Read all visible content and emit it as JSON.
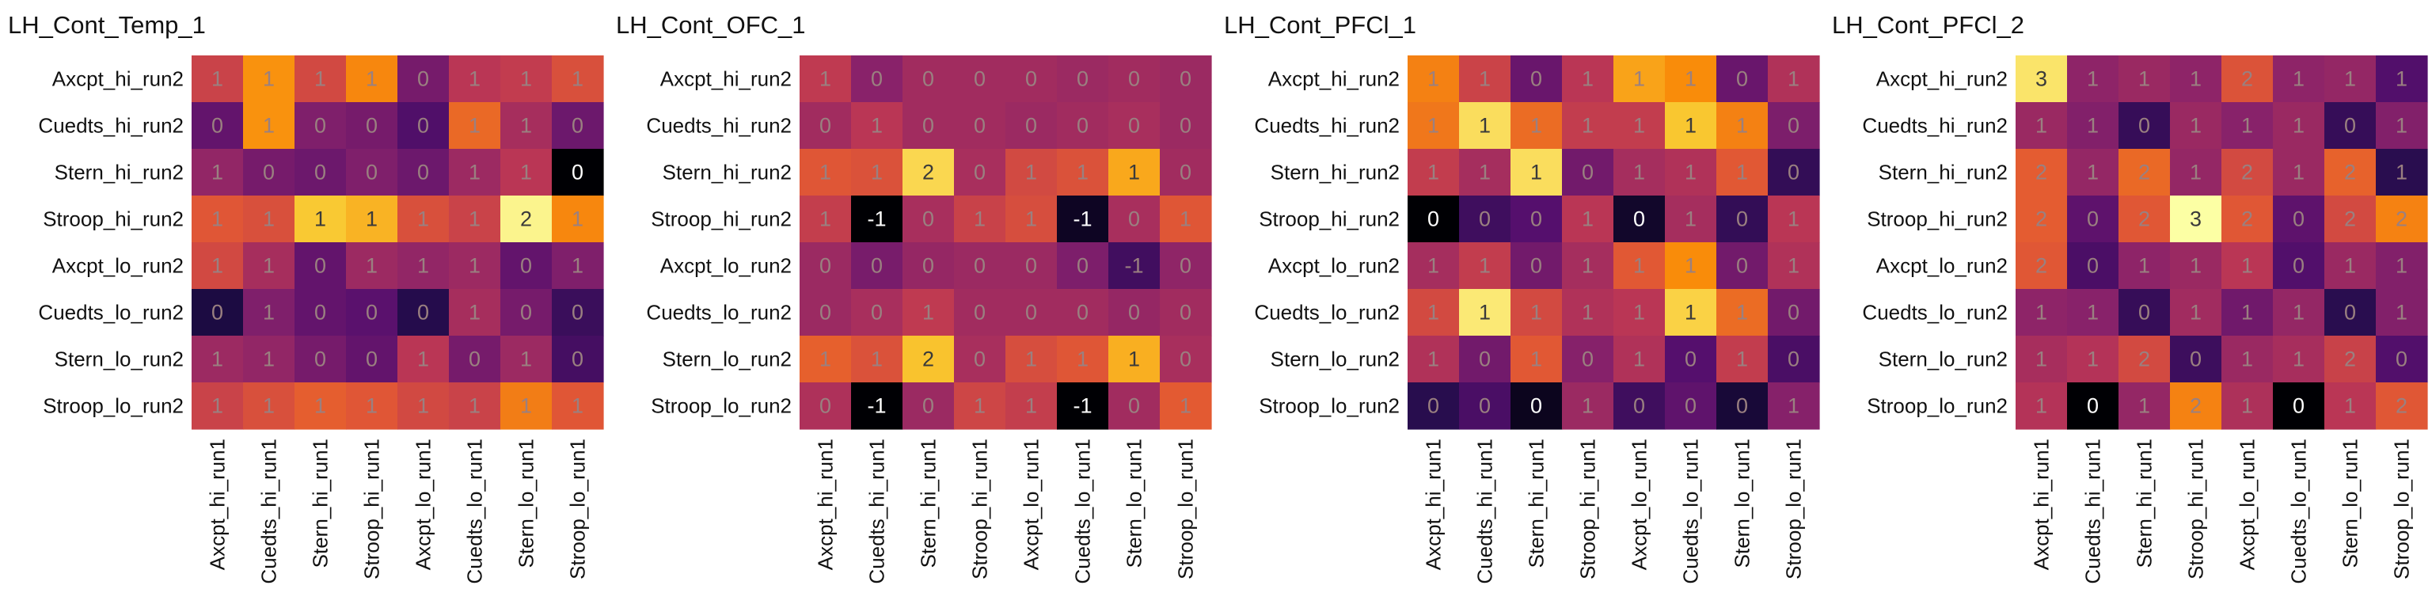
{
  "chart_data": [
    {
      "type": "heatmap",
      "title": "LH_Cont_Temp_1",
      "rows": [
        "Axcpt_hi_run2",
        "Cuedts_hi_run2",
        "Stern_hi_run2",
        "Stroop_hi_run2",
        "Axcpt_lo_run2",
        "Cuedts_lo_run2",
        "Stern_lo_run2",
        "Stroop_lo_run2"
      ],
      "columns": [
        "Axcpt_hi_run1",
        "Cuedts_hi_run1",
        "Stern_hi_run1",
        "Stroop_hi_run1",
        "Axcpt_lo_run1",
        "Cuedts_lo_run1",
        "Stern_lo_run1",
        "Stroop_lo_run1"
      ],
      "values": [
        [
          0.85,
          1.3,
          0.9,
          1.25,
          0.4,
          0.75,
          0.8,
          0.95
        ],
        [
          0.3,
          1.3,
          0.45,
          0.4,
          0.2,
          1.1,
          0.65,
          0.35
        ],
        [
          0.55,
          0.4,
          0.35,
          0.45,
          0.35,
          0.6,
          0.75,
          -0.3
        ],
        [
          1.0,
          0.95,
          1.55,
          1.45,
          0.95,
          0.85,
          1.75,
          1.25
        ],
        [
          0.9,
          0.65,
          0.3,
          0.6,
          0.55,
          0.6,
          0.3,
          0.45
        ],
        [
          -0.05,
          0.45,
          0.3,
          0.25,
          0.0,
          0.65,
          0.4,
          0.1
        ],
        [
          0.6,
          0.55,
          0.4,
          0.3,
          0.75,
          0.4,
          0.6,
          0.15
        ],
        [
          0.85,
          0.95,
          1.05,
          1.0,
          0.9,
          0.85,
          1.2,
          1.0
        ]
      ],
      "labels": [
        [
          "1",
          "1",
          "1",
          "1",
          "0",
          "1",
          "1",
          "1"
        ],
        [
          "0",
          "1",
          "0",
          "0",
          "0",
          "1",
          "1",
          "0"
        ],
        [
          "1",
          "0",
          "0",
          "0",
          "0",
          "1",
          "1",
          "0"
        ],
        [
          "1",
          "1",
          "1",
          "1",
          "1",
          "1",
          "2",
          "1"
        ],
        [
          "1",
          "1",
          "0",
          "1",
          "1",
          "1",
          "0",
          "1"
        ],
        [
          "0",
          "1",
          "0",
          "0",
          "0",
          "1",
          "0",
          "0"
        ],
        [
          "1",
          "1",
          "0",
          "0",
          "1",
          "0",
          "1",
          "0"
        ],
        [
          "1",
          "1",
          "1",
          "1",
          "1",
          "1",
          "1",
          "1"
        ]
      ],
      "vmin": -0.3,
      "vmax": 1.8
    },
    {
      "type": "heatmap",
      "title": "LH_Cont_OFC_1",
      "rows": [
        "Axcpt_hi_run2",
        "Cuedts_hi_run2",
        "Stern_hi_run2",
        "Stroop_hi_run2",
        "Axcpt_lo_run2",
        "Cuedts_lo_run2",
        "Stern_lo_run2",
        "Stroop_lo_run2"
      ],
      "columns": [
        "Axcpt_hi_run1",
        "Cuedts_hi_run1",
        "Stern_hi_run1",
        "Stroop_hi_run1",
        "Axcpt_lo_run1",
        "Cuedts_lo_run1",
        "Stern_lo_run1",
        "Stroop_lo_run1"
      ],
      "values": [
        [
          0.55,
          0.1,
          0.3,
          0.3,
          0.3,
          0.25,
          0.3,
          0.25
        ],
        [
          0.3,
          0.5,
          0.3,
          0.3,
          0.25,
          0.3,
          0.35,
          0.25
        ],
        [
          0.9,
          0.85,
          1.9,
          0.35,
          0.75,
          0.85,
          1.55,
          0.3
        ],
        [
          0.6,
          -1.2,
          0.35,
          0.65,
          0.8,
          -1.0,
          0.35,
          0.9
        ],
        [
          0.25,
          -0.05,
          0.2,
          0.25,
          0.25,
          0.0,
          -0.5,
          0.15
        ],
        [
          0.25,
          0.35,
          0.55,
          0.3,
          0.3,
          0.3,
          0.2,
          0.3
        ],
        [
          1.0,
          0.85,
          1.75,
          0.35,
          0.8,
          0.9,
          1.6,
          0.35
        ],
        [
          0.4,
          -1.2,
          0.25,
          0.7,
          0.6,
          -1.2,
          0.3,
          0.95
        ]
      ],
      "labels": [
        [
          "1",
          "0",
          "0",
          "0",
          "0",
          "0",
          "0",
          "0"
        ],
        [
          "0",
          "1",
          "0",
          "0",
          "0",
          "0",
          "0",
          "0"
        ],
        [
          "1",
          "1",
          "2",
          "0",
          "1",
          "1",
          "1",
          "0"
        ],
        [
          "1",
          "-1",
          "0",
          "1",
          "1",
          "-1",
          "0",
          "1"
        ],
        [
          "0",
          "0",
          "0",
          "0",
          "0",
          "0",
          "-1",
          "0"
        ],
        [
          "0",
          "0",
          "1",
          "0",
          "0",
          "0",
          "0",
          "0"
        ],
        [
          "1",
          "1",
          "2",
          "0",
          "1",
          "1",
          "1",
          "0"
        ],
        [
          "0",
          "-1",
          "0",
          "1",
          "1",
          "-1",
          "0",
          "1"
        ]
      ],
      "vmin": -1.2,
      "vmax": 2.2
    },
    {
      "type": "heatmap",
      "title": "LH_Cont_PFCl_1",
      "rows": [
        "Axcpt_hi_run2",
        "Cuedts_hi_run2",
        "Stern_hi_run2",
        "Stroop_hi_run2",
        "Axcpt_lo_run2",
        "Cuedts_lo_run2",
        "Stern_lo_run2",
        "Stroop_lo_run2"
      ],
      "columns": [
        "Axcpt_hi_run1",
        "Cuedts_hi_run1",
        "Stern_hi_run1",
        "Stroop_hi_run1",
        "Axcpt_lo_run1",
        "Cuedts_lo_run1",
        "Stern_lo_run1",
        "Stroop_lo_run1"
      ],
      "values": [
        [
          1.15,
          0.8,
          0.3,
          0.7,
          1.3,
          1.2,
          0.3,
          0.65
        ],
        [
          1.1,
          1.55,
          1.05,
          0.75,
          0.75,
          1.45,
          1.15,
          0.4
        ],
        [
          0.75,
          0.6,
          1.55,
          0.35,
          0.6,
          0.65,
          0.95,
          0.05
        ],
        [
          -0.3,
          0.1,
          0.2,
          0.7,
          -0.15,
          0.6,
          0.05,
          0.7
        ],
        [
          0.6,
          0.75,
          0.35,
          0.6,
          0.95,
          1.2,
          0.35,
          0.65
        ],
        [
          0.85,
          1.6,
          0.85,
          0.65,
          0.7,
          1.5,
          1.05,
          0.35
        ],
        [
          0.65,
          0.35,
          0.95,
          0.45,
          0.65,
          0.2,
          0.75,
          0.15
        ],
        [
          0.0,
          0.15,
          -0.2,
          0.55,
          0.1,
          0.25,
          -0.1,
          0.45
        ]
      ],
      "labels": [
        [
          "1",
          "1",
          "0",
          "1",
          "1",
          "1",
          "0",
          "1"
        ],
        [
          "1",
          "1",
          "1",
          "1",
          "1",
          "1",
          "1",
          "0"
        ],
        [
          "1",
          "1",
          "1",
          "0",
          "1",
          "1",
          "1",
          "0"
        ],
        [
          "0",
          "0",
          "0",
          "1",
          "0",
          "1",
          "0",
          "1"
        ],
        [
          "1",
          "1",
          "0",
          "1",
          "1",
          "1",
          "0",
          "1"
        ],
        [
          "1",
          "1",
          "1",
          "1",
          "1",
          "1",
          "1",
          "0"
        ],
        [
          "1",
          "0",
          "1",
          "0",
          "1",
          "0",
          "1",
          "0"
        ],
        [
          "0",
          "0",
          "0",
          "1",
          "0",
          "0",
          "0",
          "1"
        ]
      ],
      "vmin": -0.3,
      "vmax": 1.7
    },
    {
      "type": "heatmap",
      "title": "LH_Cont_PFCl_2",
      "rows": [
        "Axcpt_hi_run2",
        "Cuedts_hi_run2",
        "Stern_hi_run2",
        "Stroop_hi_run2",
        "Axcpt_lo_run2",
        "Cuedts_lo_run2",
        "Stern_lo_run2",
        "Stroop_lo_run2"
      ],
      "columns": [
        "Axcpt_hi_run1",
        "Cuedts_hi_run1",
        "Stern_hi_run1",
        "Stroop_hi_run1",
        "Axcpt_lo_run1",
        "Cuedts_lo_run1",
        "Stern_lo_run1",
        "Stroop_lo_run1"
      ],
      "values": [
        [
          2.8,
          1.0,
          1.1,
          1.0,
          1.7,
          1.0,
          1.05,
          0.5
        ],
        [
          1.1,
          0.9,
          0.3,
          1.1,
          0.95,
          1.1,
          0.3,
          0.9
        ],
        [
          1.8,
          1.05,
          1.9,
          1.05,
          1.6,
          1.1,
          1.85,
          0.2
        ],
        [
          1.8,
          0.6,
          1.75,
          3.0,
          1.75,
          0.6,
          1.6,
          2.1
        ],
        [
          1.75,
          0.45,
          1.0,
          1.1,
          1.35,
          0.5,
          1.1,
          0.9
        ],
        [
          1.0,
          0.95,
          0.3,
          1.15,
          0.75,
          1.05,
          0.2,
          0.9
        ],
        [
          1.2,
          1.3,
          1.6,
          0.35,
          1.1,
          1.2,
          1.5,
          0.5
        ],
        [
          1.3,
          -0.3,
          1.05,
          2.1,
          1.25,
          -0.3,
          1.35,
          1.75
        ]
      ],
      "labels": [
        [
          "3",
          "1",
          "1",
          "1",
          "2",
          "1",
          "1",
          "1"
        ],
        [
          "1",
          "1",
          "0",
          "1",
          "1",
          "1",
          "0",
          "1"
        ],
        [
          "2",
          "1",
          "2",
          "1",
          "2",
          "1",
          "2",
          "1"
        ],
        [
          "2",
          "0",
          "2",
          "3",
          "2",
          "0",
          "2",
          "2"
        ],
        [
          "2",
          "0",
          "1",
          "1",
          "1",
          "0",
          "1",
          "1"
        ],
        [
          "1",
          "1",
          "0",
          "1",
          "1",
          "1",
          "0",
          "1"
        ],
        [
          "1",
          "1",
          "2",
          "0",
          "1",
          "1",
          "2",
          "0"
        ],
        [
          "1",
          "0",
          "1",
          "2",
          "1",
          "0",
          "1",
          "2"
        ]
      ],
      "vmin": -0.3,
      "vmax": 3.0
    }
  ]
}
